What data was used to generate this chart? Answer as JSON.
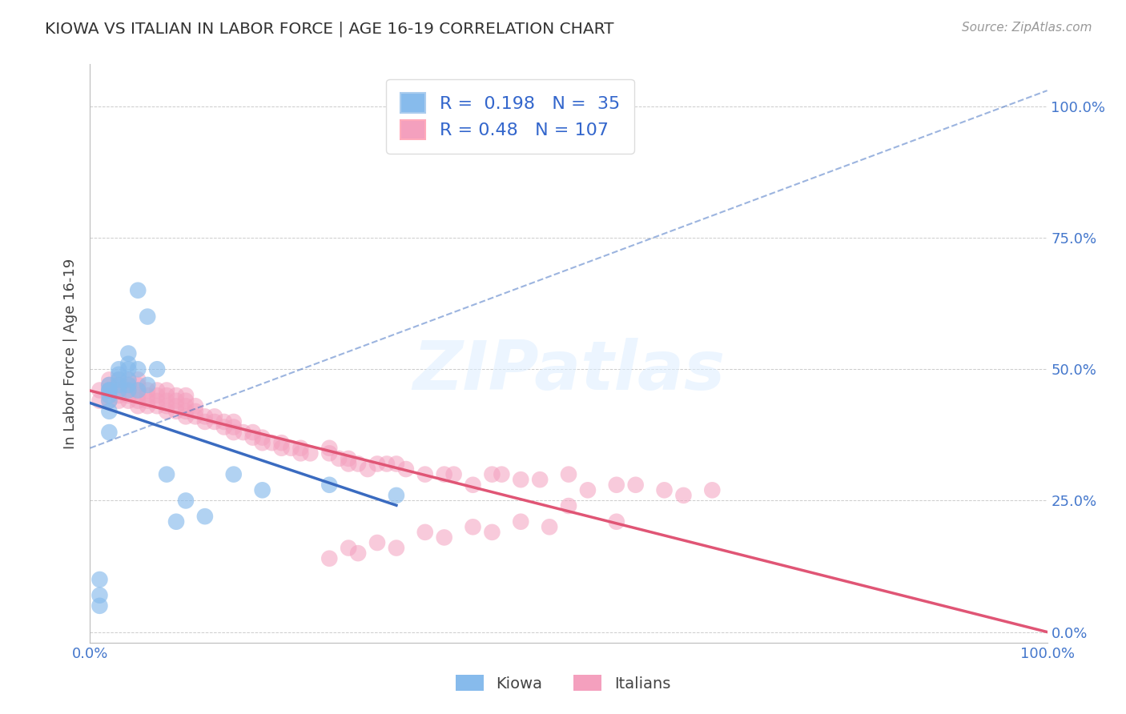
{
  "title": "KIOWA VS ITALIAN IN LABOR FORCE | AGE 16-19 CORRELATION CHART",
  "source_text": "Source: ZipAtlas.com",
  "ylabel": "In Labor Force | Age 16-19",
  "xlim": [
    0.0,
    1.0
  ],
  "ylim": [
    -0.02,
    1.08
  ],
  "yticks": [
    0.0,
    0.25,
    0.5,
    0.75,
    1.0
  ],
  "ytick_labels": [
    "0.0%",
    "25.0%",
    "50.0%",
    "75.0%",
    "100.0%"
  ],
  "xticks": [
    0.0,
    1.0
  ],
  "xtick_labels": [
    "0.0%",
    "100.0%"
  ],
  "kiowa_R": 0.198,
  "kiowa_N": 35,
  "italian_R": 0.48,
  "italian_N": 107,
  "kiowa_color": "#87BBEC",
  "italian_color": "#F4A0BE",
  "kiowa_line_color": "#3A6BC0",
  "italian_line_color": "#E05575",
  "background_color": "#FFFFFF",
  "grid_color": "#CCCCCC",
  "title_color": "#333333",
  "tick_label_color": "#4477CC",
  "legend_text_color": "#3366CC",
  "watermark": "ZIPatlas",
  "watermark_color": "#DDEEFF",
  "kiowa_x": [
    0.01,
    0.01,
    0.01,
    0.02,
    0.02,
    0.02,
    0.02,
    0.02,
    0.02,
    0.02,
    0.03,
    0.03,
    0.03,
    0.03,
    0.03,
    0.04,
    0.04,
    0.04,
    0.04,
    0.04,
    0.04,
    0.05,
    0.05,
    0.05,
    0.06,
    0.06,
    0.07,
    0.08,
    0.09,
    0.1,
    0.12,
    0.15,
    0.18,
    0.25,
    0.32
  ],
  "kiowa_y": [
    0.05,
    0.1,
    0.07,
    0.38,
    0.42,
    0.44,
    0.45,
    0.46,
    0.46,
    0.47,
    0.46,
    0.47,
    0.48,
    0.49,
    0.5,
    0.46,
    0.47,
    0.48,
    0.5,
    0.51,
    0.53,
    0.46,
    0.5,
    0.65,
    0.47,
    0.6,
    0.5,
    0.3,
    0.21,
    0.25,
    0.22,
    0.3,
    0.27,
    0.28,
    0.26
  ],
  "italian_x": [
    0.01,
    0.01,
    0.02,
    0.02,
    0.02,
    0.02,
    0.03,
    0.03,
    0.03,
    0.03,
    0.03,
    0.04,
    0.04,
    0.04,
    0.04,
    0.04,
    0.05,
    0.05,
    0.05,
    0.05,
    0.05,
    0.05,
    0.06,
    0.06,
    0.06,
    0.06,
    0.07,
    0.07,
    0.07,
    0.07,
    0.08,
    0.08,
    0.08,
    0.08,
    0.08,
    0.09,
    0.09,
    0.09,
    0.09,
    0.1,
    0.1,
    0.1,
    0.1,
    0.1,
    0.11,
    0.11,
    0.11,
    0.12,
    0.12,
    0.13,
    0.13,
    0.14,
    0.14,
    0.15,
    0.15,
    0.15,
    0.16,
    0.17,
    0.17,
    0.18,
    0.18,
    0.19,
    0.2,
    0.2,
    0.21,
    0.22,
    0.22,
    0.23,
    0.25,
    0.25,
    0.26,
    0.27,
    0.27,
    0.28,
    0.29,
    0.3,
    0.31,
    0.32,
    0.33,
    0.35,
    0.37,
    0.38,
    0.4,
    0.42,
    0.43,
    0.45,
    0.47,
    0.5,
    0.52,
    0.55,
    0.57,
    0.6,
    0.62,
    0.65,
    0.55,
    0.5,
    0.48,
    0.45,
    0.42,
    0.4,
    0.37,
    0.35,
    0.32,
    0.3,
    0.28,
    0.27,
    0.25
  ],
  "italian_y": [
    0.44,
    0.46,
    0.44,
    0.46,
    0.47,
    0.48,
    0.44,
    0.45,
    0.46,
    0.47,
    0.48,
    0.44,
    0.45,
    0.46,
    0.47,
    0.48,
    0.43,
    0.44,
    0.45,
    0.46,
    0.47,
    0.48,
    0.43,
    0.44,
    0.45,
    0.46,
    0.43,
    0.44,
    0.45,
    0.46,
    0.42,
    0.43,
    0.44,
    0.45,
    0.46,
    0.42,
    0.43,
    0.44,
    0.45,
    0.41,
    0.42,
    0.43,
    0.44,
    0.45,
    0.41,
    0.42,
    0.43,
    0.4,
    0.41,
    0.4,
    0.41,
    0.39,
    0.4,
    0.38,
    0.39,
    0.4,
    0.38,
    0.37,
    0.38,
    0.36,
    0.37,
    0.36,
    0.35,
    0.36,
    0.35,
    0.34,
    0.35,
    0.34,
    0.34,
    0.35,
    0.33,
    0.32,
    0.33,
    0.32,
    0.31,
    0.32,
    0.32,
    0.32,
    0.31,
    0.3,
    0.3,
    0.3,
    0.28,
    0.3,
    0.3,
    0.29,
    0.29,
    0.3,
    0.27,
    0.28,
    0.28,
    0.27,
    0.26,
    0.27,
    0.21,
    0.24,
    0.2,
    0.21,
    0.19,
    0.2,
    0.18,
    0.19,
    0.16,
    0.17,
    0.15,
    0.16,
    0.14
  ]
}
